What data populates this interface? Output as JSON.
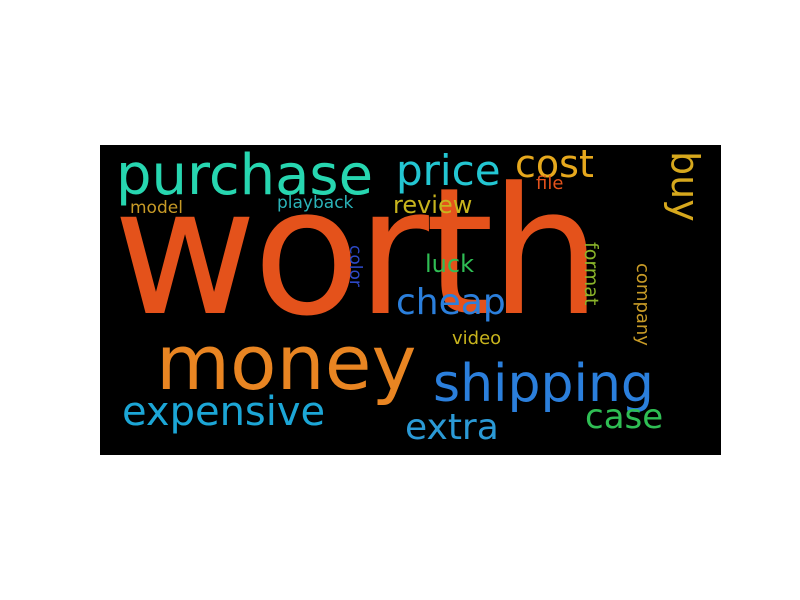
{
  "word_cloud": {
    "background": "#000000",
    "words": [
      {
        "text": "worth",
        "color": "#e4521b",
        "orientation": "horizontal"
      },
      {
        "text": "money",
        "color": "#e98522",
        "orientation": "horizontal"
      },
      {
        "text": "shipping",
        "color": "#2b7fdc",
        "orientation": "horizontal"
      },
      {
        "text": "purchase",
        "color": "#27d6b0",
        "orientation": "horizontal"
      },
      {
        "text": "price",
        "color": "#23c6d2",
        "orientation": "horizontal"
      },
      {
        "text": "cost",
        "color": "#e6a81d",
        "orientation": "horizontal"
      },
      {
        "text": "buy",
        "color": "#d6a81d",
        "orientation": "vertical"
      },
      {
        "text": "file",
        "color": "#e4521b",
        "orientation": "horizontal"
      },
      {
        "text": "model",
        "color": "#c79a26",
        "orientation": "horizontal"
      },
      {
        "text": "playback",
        "color": "#2bb3b8",
        "orientation": "horizontal"
      },
      {
        "text": "review",
        "color": "#c8b41d",
        "orientation": "horizontal"
      },
      {
        "text": "color",
        "color": "#2d49c8",
        "orientation": "vertical"
      },
      {
        "text": "luck",
        "color": "#2fbe54",
        "orientation": "horizontal"
      },
      {
        "text": "cheap",
        "color": "#2b7fdc",
        "orientation": "horizontal"
      },
      {
        "text": "format",
        "color": "#8ab42a",
        "orientation": "vertical"
      },
      {
        "text": "company",
        "color": "#c79a26",
        "orientation": "vertical"
      },
      {
        "text": "video",
        "color": "#c8b41d",
        "orientation": "horizontal"
      },
      {
        "text": "expensive",
        "color": "#1ca6d6",
        "orientation": "horizontal"
      },
      {
        "text": "extra",
        "color": "#2b9ad6",
        "orientation": "horizontal"
      },
      {
        "text": "case",
        "color": "#2fbe54",
        "orientation": "horizontal"
      }
    ]
  }
}
